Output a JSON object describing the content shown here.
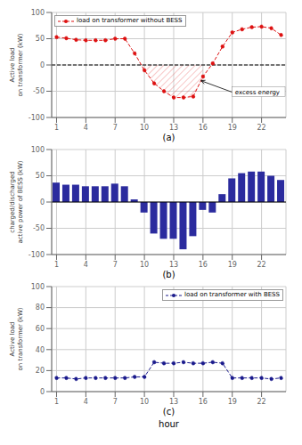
{
  "chart_data": [
    {
      "type": "line",
      "title": "(a)",
      "ylabel": "Active load\non transformer (kW)",
      "x": [
        1,
        2,
        3,
        4,
        5,
        6,
        7,
        8,
        9,
        10,
        11,
        12,
        13,
        14,
        15,
        16,
        17,
        18,
        19,
        20,
        21,
        22,
        23,
        24
      ],
      "series": [
        {
          "name": "load on transformer without BESS",
          "color": "#dd1111",
          "line_style": "dashed",
          "marker": "o",
          "values": [
            53,
            51,
            48,
            47,
            47,
            47,
            50,
            50,
            22,
            -10,
            -35,
            -50,
            -62,
            -62,
            -60,
            -22,
            3,
            35,
            62,
            68,
            72,
            73,
            70,
            57
          ]
        }
      ],
      "xlim": [
        0.5,
        24.5
      ],
      "xticks": [
        1,
        4,
        7,
        10,
        13,
        16,
        19,
        22
      ],
      "ylim": [
        -100,
        100
      ],
      "yticks": [
        -100,
        -50,
        0,
        50,
        100
      ],
      "grid": true,
      "legend": "upper left",
      "annotations": [
        {
          "text": "excess energy",
          "x": 15.8,
          "y": -30,
          "text_x": 19.0,
          "text_y": -62
        }
      ]
    },
    {
      "type": "bar",
      "title": "(b)",
      "ylabel": "charged/discharged\nactive power of BESS (kW)",
      "x": [
        1,
        2,
        3,
        4,
        5,
        6,
        7,
        8,
        9,
        10,
        11,
        12,
        13,
        14,
        15,
        16,
        17,
        18,
        19,
        20,
        21,
        22,
        23,
        24
      ],
      "values": [
        37,
        33,
        33,
        30,
        30,
        30,
        35,
        30,
        5,
        -20,
        -60,
        -70,
        -70,
        -90,
        -65,
        -15,
        -20,
        15,
        45,
        55,
        58,
        58,
        50,
        42
      ],
      "color": "#2b2b9e",
      "xlim": [
        0.5,
        24.5
      ],
      "xticks": [
        1,
        4,
        7,
        10,
        13,
        16,
        19,
        22
      ],
      "ylim": [
        -100,
        100
      ],
      "yticks": [
        -100,
        -50,
        0,
        50,
        100
      ],
      "grid": true
    },
    {
      "type": "line",
      "title": "(c)",
      "xlabel": "hour",
      "ylabel": "Active load\non transformer (kW)",
      "x": [
        1,
        2,
        3,
        4,
        5,
        6,
        7,
        8,
        9,
        10,
        11,
        12,
        13,
        14,
        15,
        16,
        17,
        18,
        19,
        20,
        21,
        22,
        23,
        24
      ],
      "series": [
        {
          "name": "load on transformer with BESS",
          "color": "#1a1a8c",
          "line_style": "dashed",
          "marker": "o",
          "values": [
            13,
            13,
            12,
            13,
            13,
            13,
            13,
            13,
            14,
            14,
            28,
            27,
            27,
            28,
            27,
            27,
            28,
            27,
            13,
            13,
            13,
            13,
            12,
            13
          ]
        }
      ],
      "xlim": [
        0.5,
        24.5
      ],
      "xticks": [
        1,
        4,
        7,
        10,
        13,
        16,
        19,
        22
      ],
      "ylim": [
        0,
        100
      ],
      "yticks": [
        0,
        20,
        40,
        60,
        80,
        100
      ],
      "grid": true,
      "legend": "upper right"
    }
  ]
}
